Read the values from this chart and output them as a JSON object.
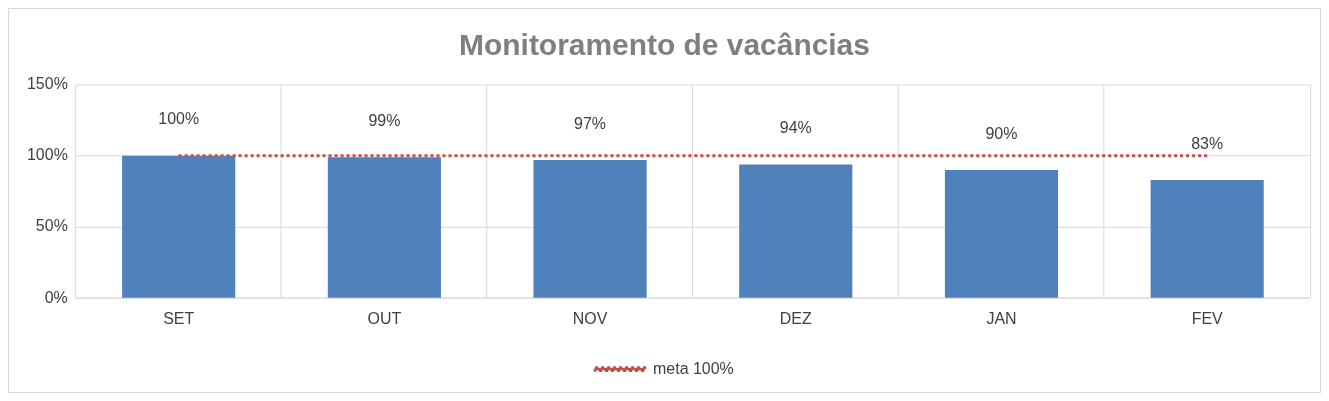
{
  "chart_data": {
    "type": "bar",
    "title": "Monitoramento de vacâncias",
    "categories": [
      "SET",
      "OUT",
      "NOV",
      "DEZ",
      "JAN",
      "FEV"
    ],
    "series": [
      {
        "color": "#4f81bd",
        "values": [
          100,
          99,
          97,
          94,
          90,
          83
        ]
      },
      {
        "type": "line",
        "name": "meta 100%",
        "color": "#c0504d",
        "line_style": "dotted",
        "marker": "none",
        "values": [
          100,
          100,
          100,
          100,
          100,
          100
        ]
      }
    ],
    "ylim": [
      0,
      150
    ],
    "yticks": [
      {
        "value": 0,
        "label": "0%"
      },
      {
        "value": 50,
        "label": "50%"
      },
      {
        "value": 100,
        "label": "100%"
      },
      {
        "value": 150,
        "label": "150%"
      }
    ],
    "value_labels": [
      "100%",
      "99%",
      "97%",
      "94%",
      "90%",
      "83%"
    ],
    "grid": true,
    "legend": "bottom"
  }
}
